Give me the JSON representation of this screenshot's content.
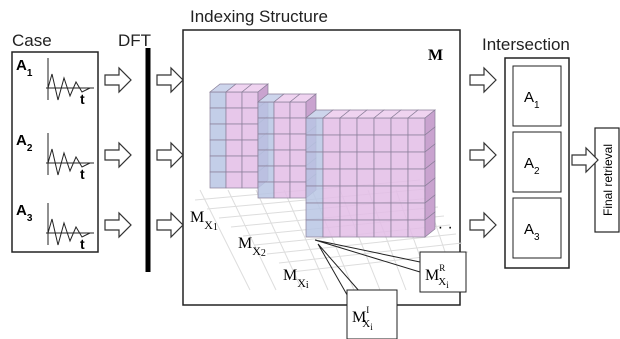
{
  "headers": {
    "case": "Case",
    "dft": "DFT",
    "indexing": "Indexing Structure",
    "intersection": "Intersection"
  },
  "cases": [
    {
      "label": "A",
      "sub": "1",
      "axis": "t"
    },
    {
      "label": "A",
      "sub": "2",
      "axis": "t"
    },
    {
      "label": "A",
      "sub": "3",
      "axis": "t"
    }
  ],
  "index": {
    "matrix": "M",
    "ellipsis": "· · ·",
    "slices": [
      {
        "base": "M",
        "sub": "X",
        "subsub": "1"
      },
      {
        "base": "M",
        "sub": "X",
        "subsub": "2"
      },
      {
        "base": "M",
        "sub": "X",
        "subsub": "i"
      }
    ],
    "callouts": [
      {
        "base": "M",
        "sup": "R",
        "sub": "X",
        "subsub": "i"
      },
      {
        "base": "M",
        "sup": "I",
        "sub": "X",
        "subsub": "i"
      }
    ]
  },
  "results": [
    {
      "label": "A",
      "sub": "1"
    },
    {
      "label": "A",
      "sub": "2"
    },
    {
      "label": "A",
      "sub": "3"
    }
  ],
  "final": "Final retrieval"
}
